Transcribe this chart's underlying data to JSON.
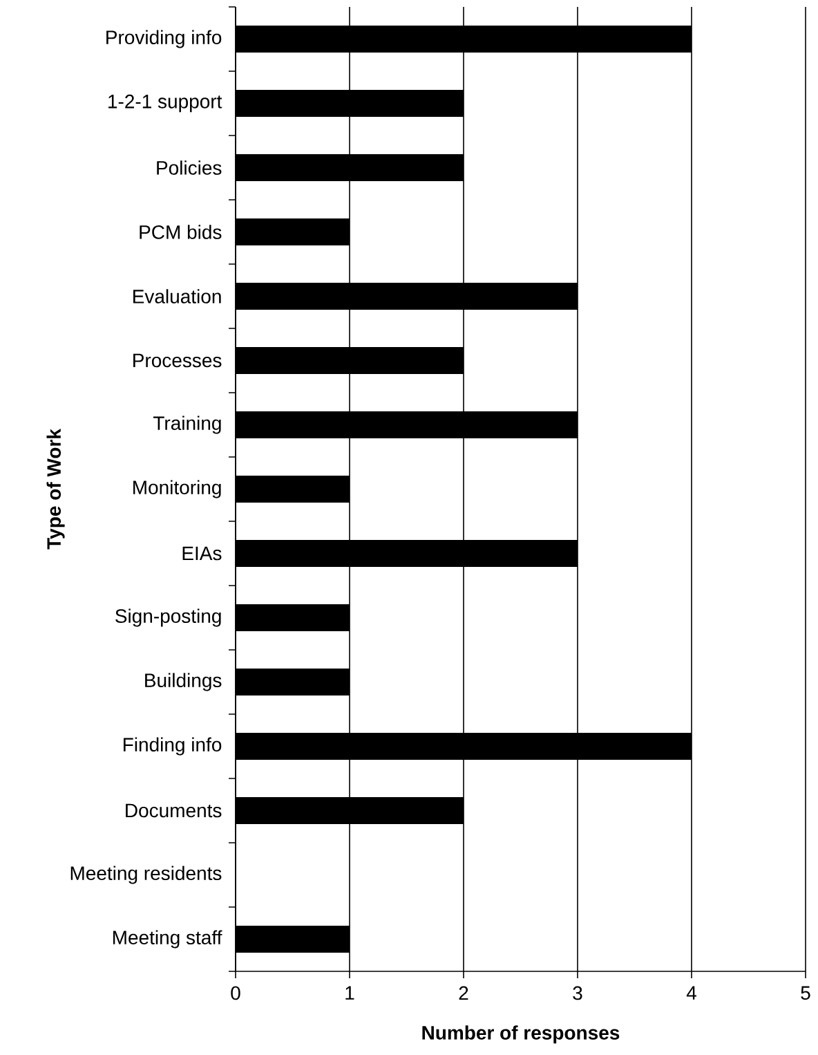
{
  "chart_data": {
    "type": "bar",
    "orientation": "horizontal",
    "xlabel": "Number of responses",
    "ylabel": "Type of Work",
    "categories": [
      "Providing info",
      "1-2-1 support",
      "Policies",
      "PCM bids",
      "Evaluation",
      "Processes",
      "Training",
      "Monitoring",
      "EIAs",
      "Sign-posting",
      "Buildings",
      "Finding info",
      "Documents",
      "Meeting residents",
      "Meeting staff"
    ],
    "values": [
      4,
      2,
      2,
      1,
      3,
      2,
      3,
      1,
      3,
      1,
      1,
      4,
      2,
      0,
      1
    ],
    "color": "#000000",
    "xlim": [
      0,
      5
    ],
    "xticks": [
      0,
      1,
      2,
      3,
      4,
      5
    ],
    "grid": "x"
  }
}
